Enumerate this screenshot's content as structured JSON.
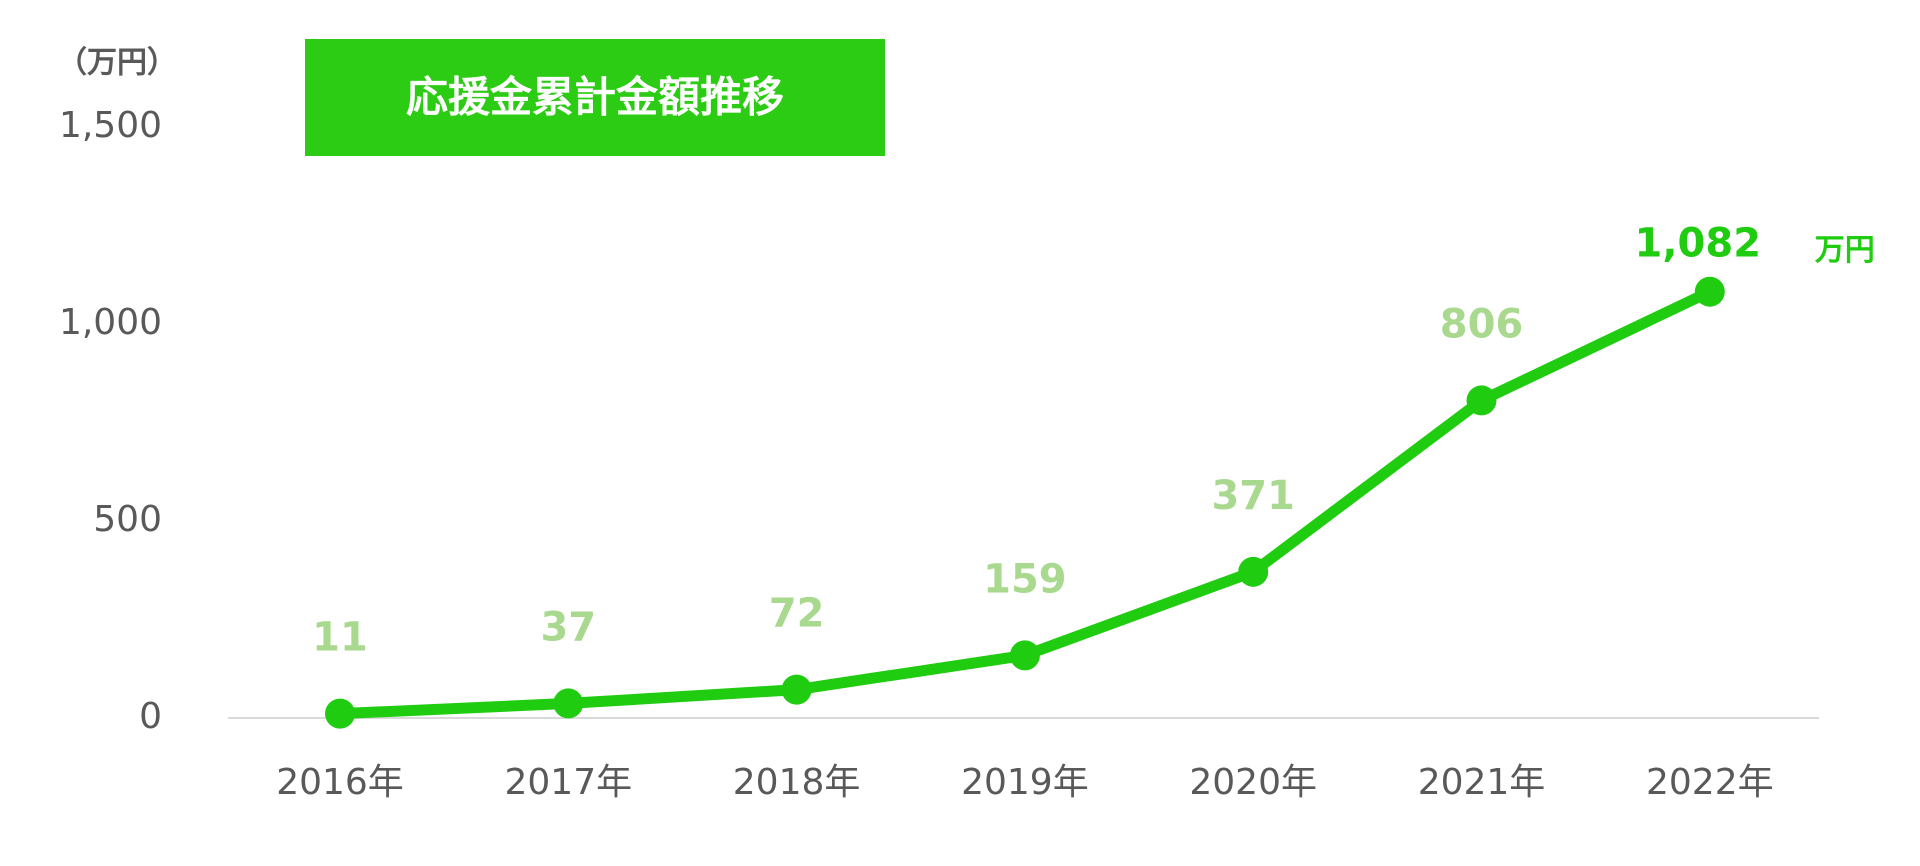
{
  "chart_data": {
    "type": "line",
    "title": "応援金累計金額推移",
    "y_label": "（万円）",
    "categories": [
      "2016年",
      "2017年",
      "2018年",
      "2019年",
      "2020年",
      "2021年",
      "2022年"
    ],
    "values": [
      11,
      37,
      72,
      159,
      371,
      806,
      1082
    ],
    "value_labels": [
      "11",
      "37",
      "72",
      "159",
      "371",
      "806",
      "1,082"
    ],
    "annotation": "万円",
    "color": "#1fcc10",
    "label_color": "#a9d98e",
    "title_background": "#2ccc14",
    "ylim": [
      0,
      1500
    ],
    "yticks": [
      0,
      500,
      {
        "value": 1000,
        "label": "1,000"
      },
      {
        "value": 1500,
        "label": "1,500"
      }
    ],
    "grid": false
  }
}
